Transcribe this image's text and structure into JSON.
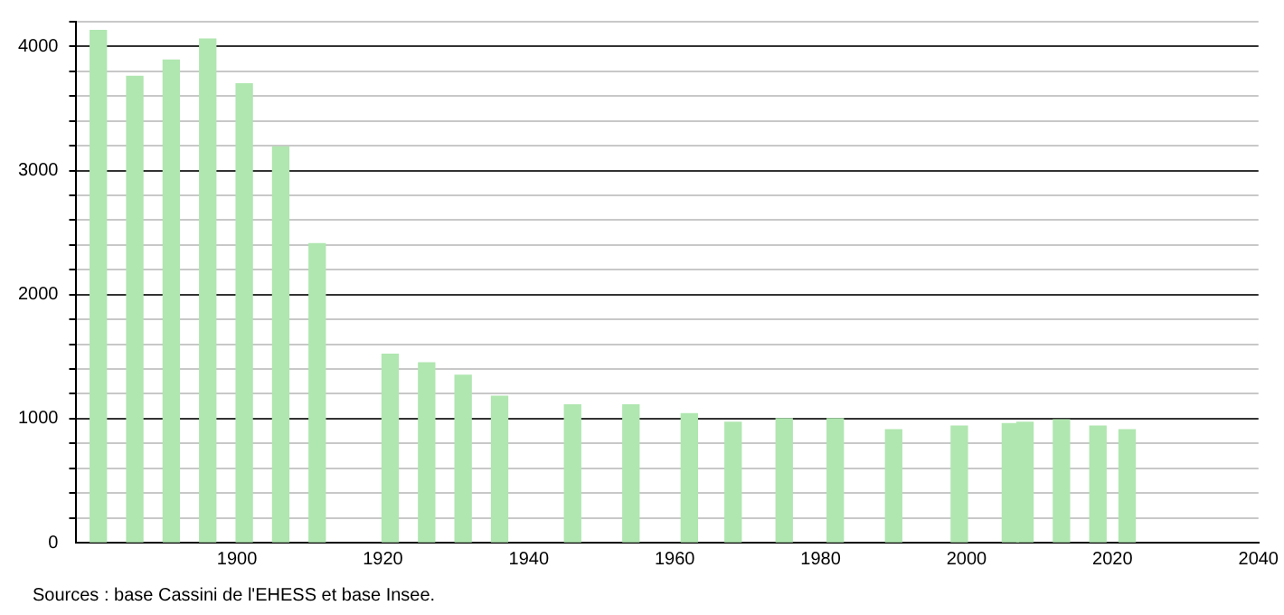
{
  "chart_data": {
    "type": "bar",
    "x": [
      1881,
      1886,
      1891,
      1896,
      1901,
      1906,
      1911,
      1921,
      1926,
      1931,
      1936,
      1946,
      1954,
      1962,
      1968,
      1975,
      1982,
      1990,
      1999,
      2006,
      2008,
      2013,
      2018,
      2022
    ],
    "values": [
      4130,
      3760,
      3890,
      4060,
      3700,
      3190,
      2410,
      1520,
      1450,
      1350,
      1180,
      1110,
      1110,
      1040,
      970,
      1000,
      1000,
      910,
      940,
      960,
      970,
      990,
      940,
      910
    ],
    "color": "#b0e6b0",
    "xlim": [
      1878,
      2040
    ],
    "xticks": [
      1900,
      1920,
      1940,
      1960,
      1980,
      2000,
      2020,
      2040
    ],
    "ylim": [
      0,
      4200
    ],
    "yticks": [
      0,
      {
        "value": 200,
        "label": null
      },
      {
        "value": 400,
        "label": null
      },
      {
        "value": 600,
        "label": null
      },
      {
        "value": 800,
        "label": null
      },
      1000,
      {
        "value": 1200,
        "label": null
      },
      {
        "value": 1400,
        "label": null
      },
      {
        "value": 1600,
        "label": null
      },
      {
        "value": 1800,
        "label": null
      },
      2000,
      {
        "value": 2200,
        "label": null
      },
      {
        "value": 2400,
        "label": null
      },
      {
        "value": 2600,
        "label": null
      },
      {
        "value": 2800,
        "label": null
      },
      3000,
      {
        "value": 3200,
        "label": null
      },
      {
        "value": 3400,
        "label": null
      },
      {
        "value": 3600,
        "label": null
      },
      {
        "value": 3800,
        "label": null
      },
      4000,
      {
        "value": 4200,
        "label": null
      }
    ],
    "grid": "y",
    "annotations": [
      "Sources : base Cassini de l'EHESS et base Insee."
    ]
  }
}
